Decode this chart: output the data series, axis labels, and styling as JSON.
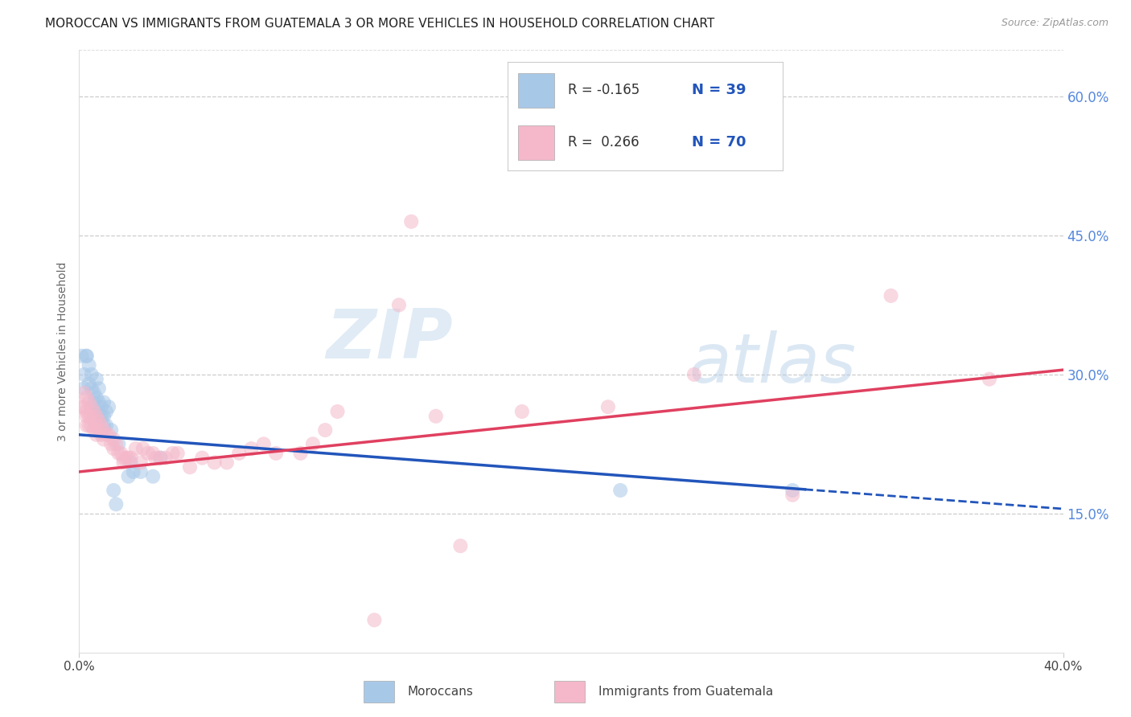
{
  "title": "MOROCCAN VS IMMIGRANTS FROM GUATEMALA 3 OR MORE VEHICLES IN HOUSEHOLD CORRELATION CHART",
  "source": "Source: ZipAtlas.com",
  "ylabel": "3 or more Vehicles in Household",
  "legend_blue_r": "-0.165",
  "legend_blue_n": "39",
  "legend_pink_r": "0.266",
  "legend_pink_n": "70",
  "legend_label_blue": "Moroccans",
  "legend_label_pink": "Immigrants from Guatemala",
  "blue_color": "#a8c8e8",
  "pink_color": "#f4b8ca",
  "blue_line_color": "#2255bb",
  "pink_line_color": "#e04060",
  "background_color": "#ffffff",
  "grid_color": "#cccccc",
  "watermark_zip": "ZIP",
  "watermark_atlas": "atlas",
  "blue_dots": [
    [
      0.001,
      0.32
    ],
    [
      0.002,
      0.3
    ],
    [
      0.002,
      0.285
    ],
    [
      0.003,
      0.32
    ],
    [
      0.003,
      0.32
    ],
    [
      0.004,
      0.31
    ],
    [
      0.004,
      0.29
    ],
    [
      0.005,
      0.3
    ],
    [
      0.005,
      0.285
    ],
    [
      0.005,
      0.265
    ],
    [
      0.006,
      0.28
    ],
    [
      0.006,
      0.27
    ],
    [
      0.006,
      0.255
    ],
    [
      0.007,
      0.295
    ],
    [
      0.007,
      0.275
    ],
    [
      0.007,
      0.26
    ],
    [
      0.008,
      0.285
    ],
    [
      0.008,
      0.27
    ],
    [
      0.008,
      0.255
    ],
    [
      0.009,
      0.265
    ],
    [
      0.009,
      0.255
    ],
    [
      0.01,
      0.27
    ],
    [
      0.01,
      0.255
    ],
    [
      0.01,
      0.245
    ],
    [
      0.011,
      0.26
    ],
    [
      0.011,
      0.245
    ],
    [
      0.012,
      0.265
    ],
    [
      0.013,
      0.24
    ],
    [
      0.014,
      0.175
    ],
    [
      0.015,
      0.16
    ],
    [
      0.016,
      0.225
    ],
    [
      0.02,
      0.19
    ],
    [
      0.021,
      0.205
    ],
    [
      0.022,
      0.195
    ],
    [
      0.025,
      0.195
    ],
    [
      0.03,
      0.19
    ],
    [
      0.033,
      0.21
    ],
    [
      0.22,
      0.175
    ],
    [
      0.29,
      0.175
    ]
  ],
  "pink_dots": [
    [
      0.001,
      0.265
    ],
    [
      0.002,
      0.28
    ],
    [
      0.002,
      0.265
    ],
    [
      0.003,
      0.275
    ],
    [
      0.003,
      0.26
    ],
    [
      0.003,
      0.255
    ],
    [
      0.003,
      0.245
    ],
    [
      0.004,
      0.27
    ],
    [
      0.004,
      0.255
    ],
    [
      0.004,
      0.245
    ],
    [
      0.005,
      0.265
    ],
    [
      0.005,
      0.255
    ],
    [
      0.005,
      0.245
    ],
    [
      0.006,
      0.26
    ],
    [
      0.006,
      0.25
    ],
    [
      0.006,
      0.24
    ],
    [
      0.007,
      0.255
    ],
    [
      0.007,
      0.245
    ],
    [
      0.007,
      0.235
    ],
    [
      0.008,
      0.25
    ],
    [
      0.008,
      0.24
    ],
    [
      0.009,
      0.245
    ],
    [
      0.009,
      0.235
    ],
    [
      0.01,
      0.24
    ],
    [
      0.01,
      0.23
    ],
    [
      0.011,
      0.235
    ],
    [
      0.012,
      0.235
    ],
    [
      0.013,
      0.225
    ],
    [
      0.014,
      0.23
    ],
    [
      0.014,
      0.22
    ],
    [
      0.015,
      0.225
    ],
    [
      0.016,
      0.215
    ],
    [
      0.017,
      0.215
    ],
    [
      0.018,
      0.21
    ],
    [
      0.018,
      0.205
    ],
    [
      0.019,
      0.21
    ],
    [
      0.02,
      0.21
    ],
    [
      0.021,
      0.21
    ],
    [
      0.023,
      0.22
    ],
    [
      0.025,
      0.205
    ],
    [
      0.026,
      0.22
    ],
    [
      0.028,
      0.215
    ],
    [
      0.03,
      0.215
    ],
    [
      0.031,
      0.21
    ],
    [
      0.033,
      0.21
    ],
    [
      0.035,
      0.21
    ],
    [
      0.038,
      0.215
    ],
    [
      0.04,
      0.215
    ],
    [
      0.045,
      0.2
    ],
    [
      0.05,
      0.21
    ],
    [
      0.055,
      0.205
    ],
    [
      0.06,
      0.205
    ],
    [
      0.065,
      0.215
    ],
    [
      0.07,
      0.22
    ],
    [
      0.075,
      0.225
    ],
    [
      0.08,
      0.215
    ],
    [
      0.09,
      0.215
    ],
    [
      0.095,
      0.225
    ],
    [
      0.1,
      0.24
    ],
    [
      0.105,
      0.26
    ],
    [
      0.12,
      0.035
    ],
    [
      0.13,
      0.375
    ],
    [
      0.135,
      0.465
    ],
    [
      0.145,
      0.255
    ],
    [
      0.155,
      0.115
    ],
    [
      0.18,
      0.26
    ],
    [
      0.215,
      0.265
    ],
    [
      0.25,
      0.3
    ],
    [
      0.29,
      0.17
    ],
    [
      0.33,
      0.385
    ],
    [
      0.37,
      0.295
    ]
  ],
  "xlim": [
    0.0,
    0.4
  ],
  "ylim": [
    0.0,
    0.65
  ],
  "xticks": [
    0.0,
    0.05,
    0.1,
    0.15,
    0.2,
    0.25,
    0.3,
    0.35,
    0.4
  ],
  "yticks": [
    0.0,
    0.15,
    0.3,
    0.45,
    0.6
  ],
  "blue_line_start_y": 0.235,
  "blue_line_end_y": 0.155,
  "blue_line_solid_end_x": 0.295,
  "blue_line_end_x": 0.4,
  "pink_line_start_y": 0.195,
  "pink_line_end_y": 0.305,
  "dot_size": 170,
  "alpha": 0.55,
  "title_fontsize": 11,
  "axis_label_fontsize": 10,
  "tick_fontsize": 10
}
